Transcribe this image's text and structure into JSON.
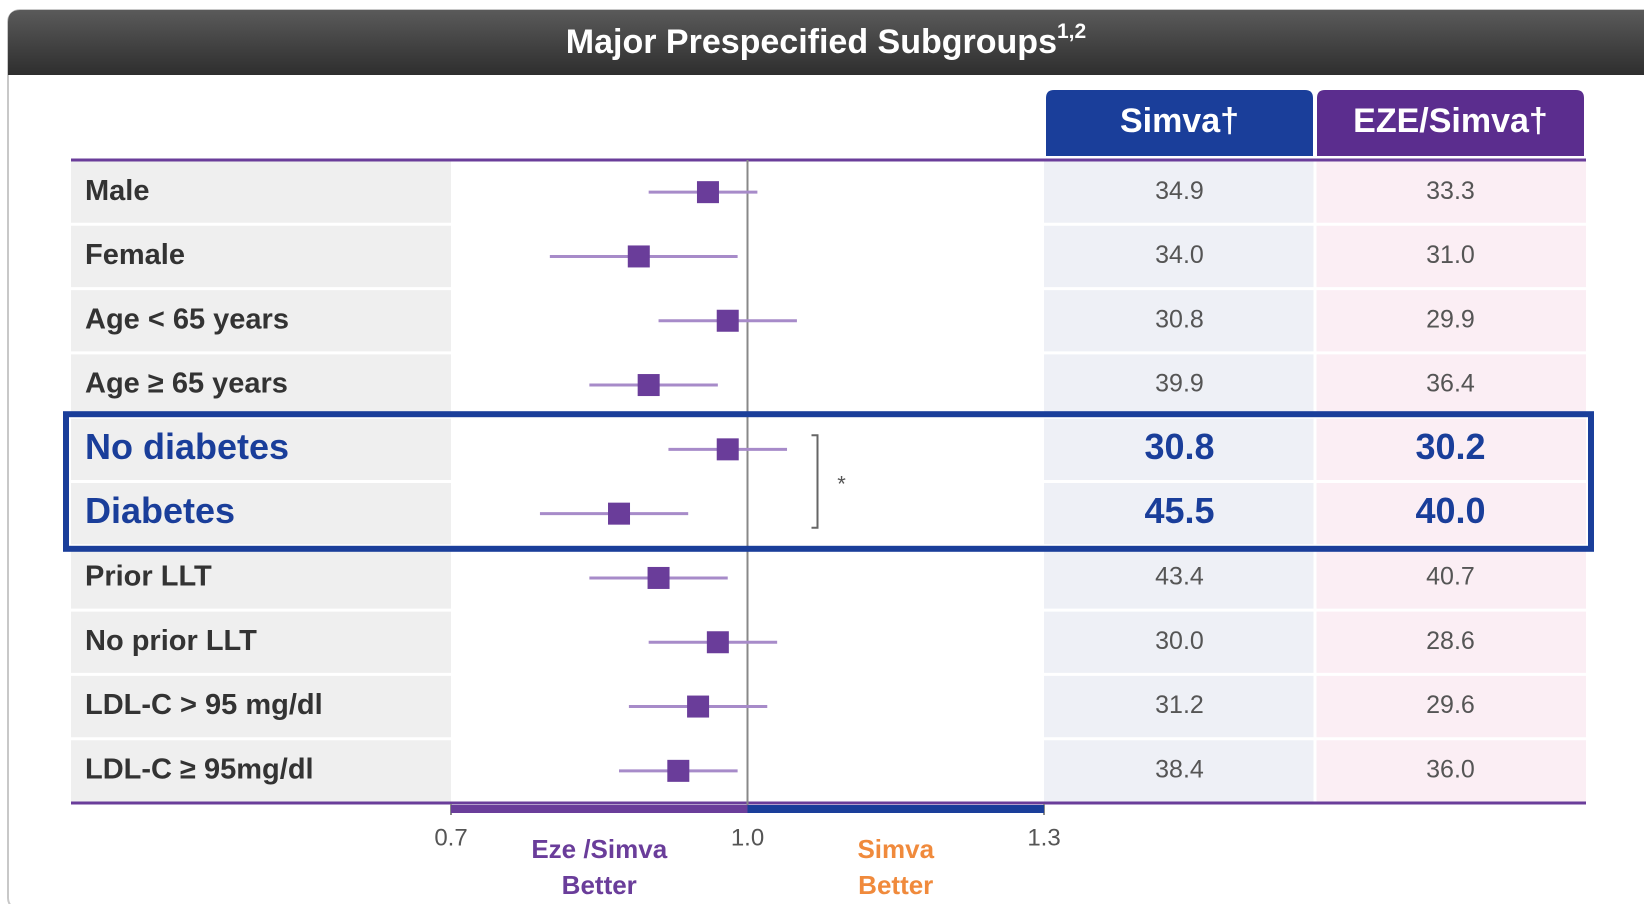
{
  "chart_data": {
    "type": "forest",
    "title": "Major Prespecified Subgroups",
    "title_superscript": "1,2",
    "categories": [
      "Male",
      "Female",
      "Age < 65 years",
      "Age ≥ 65 years",
      "No diabetes",
      "Diabetes",
      "Prior LLT",
      "No prior LLT",
      "LDL-C > 95 mg/dl",
      "LDL-C ≥ 95mg/dl"
    ],
    "values": [
      0.96,
      0.89,
      0.98,
      0.9,
      0.98,
      0.87,
      0.91,
      0.97,
      0.95,
      0.93
    ],
    "lower": [
      0.9,
      0.8,
      0.91,
      0.84,
      0.92,
      0.79,
      0.84,
      0.9,
      0.88,
      0.87
    ],
    "upper": [
      1.01,
      0.99,
      1.05,
      0.97,
      1.04,
      0.94,
      0.98,
      1.03,
      1.02,
      0.99
    ],
    "color": "#6a3d9a",
    "ci_color": "#a78bc9",
    "columns": [
      {
        "header": "Simva†",
        "header_color": "#1a3e9a",
        "background": "#eef0f6",
        "values": [
          "34.9",
          "34.0",
          "30.8",
          "39.9",
          "30.8",
          "45.5",
          "43.4",
          "30.0",
          "31.2",
          "38.4"
        ]
      },
      {
        "header": "EZE/Simva†",
        "header_color": "#5b2d8e",
        "background": "#fbeef4",
        "values": [
          "33.3",
          "31.0",
          "29.9",
          "36.4",
          "30.2",
          "40.0",
          "40.7",
          "28.6",
          "29.6",
          "36.0"
        ]
      }
    ],
    "highlight": [
      4,
      5
    ],
    "highlight_color": "#1a3e9a",
    "annotation": "*",
    "xlim": [
      0.7,
      1.3
    ],
    "xticks": [
      0.7,
      {
        "value": 1.0,
        "label": "1.0"
      },
      1.3
    ],
    "left_label": [
      "Eze /Simva",
      "Better"
    ],
    "left_color": "#6a3d9a",
    "right_label": [
      "Simva",
      "Better"
    ],
    "right_color": "#f08a3c"
  }
}
